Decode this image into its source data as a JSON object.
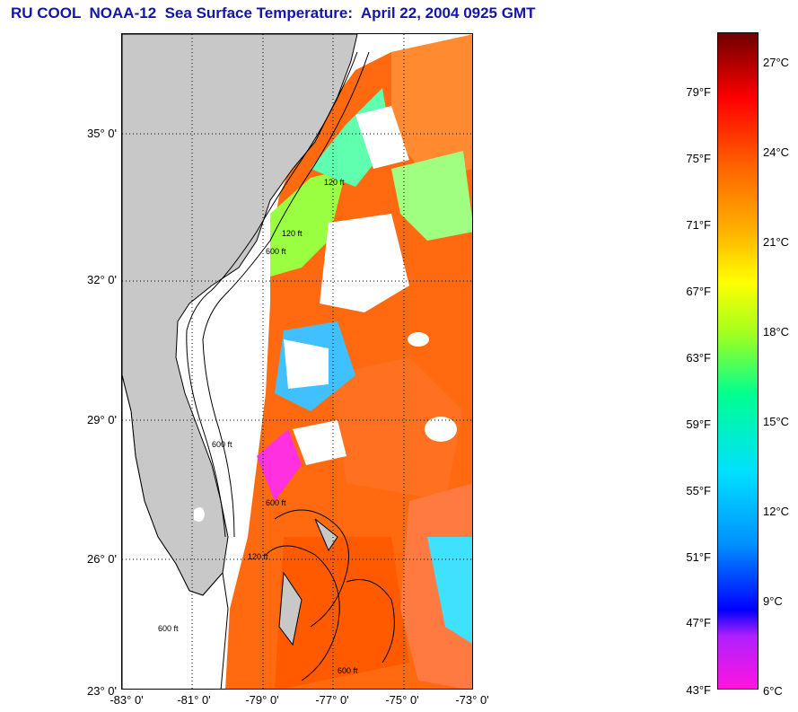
{
  "title": "RU COOL  NOAA-12  Sea Surface Temperature:  April 22, 2004 0925 GMT",
  "map": {
    "lat_labels": [
      "35° 0'",
      "32° 0'",
      "29° 0'",
      "26° 0'",
      "23° 0'"
    ],
    "lon_labels": [
      "-83° 0'",
      "-81° 0'",
      "-79° 0'",
      "-77° 0'",
      "-75° 0'",
      "-73° 0'"
    ],
    "lat_range": [
      23,
      37.2
    ],
    "lon_range": [
      -83,
      -73
    ],
    "grid": "dotted",
    "land_color": "#c8c8c8",
    "contour_labels": [
      "120 ft",
      "600 ft",
      "120 ft",
      "600 ft",
      "600 ft",
      "120 ft",
      "600 ft",
      "600 ft"
    ]
  },
  "colorbar": {
    "fahrenheit_labels": [
      "79°F",
      "75°F",
      "71°F",
      "67°F",
      "63°F",
      "59°F",
      "55°F",
      "51°F",
      "47°F",
      "43°F"
    ],
    "celsius_labels": [
      "27°C",
      "24°C",
      "21°C",
      "18°C",
      "15°C",
      "12°C",
      "9°C",
      "6°C"
    ],
    "range_c": [
      6,
      28.2
    ],
    "colors": [
      "#ff14e0",
      "#b020ff",
      "#0000ff",
      "#0090ff",
      "#00e0ff",
      "#00ff90",
      "#a0ff20",
      "#ffff00",
      "#ffb000",
      "#ff6000",
      "#ff0000",
      "#700000"
    ]
  }
}
